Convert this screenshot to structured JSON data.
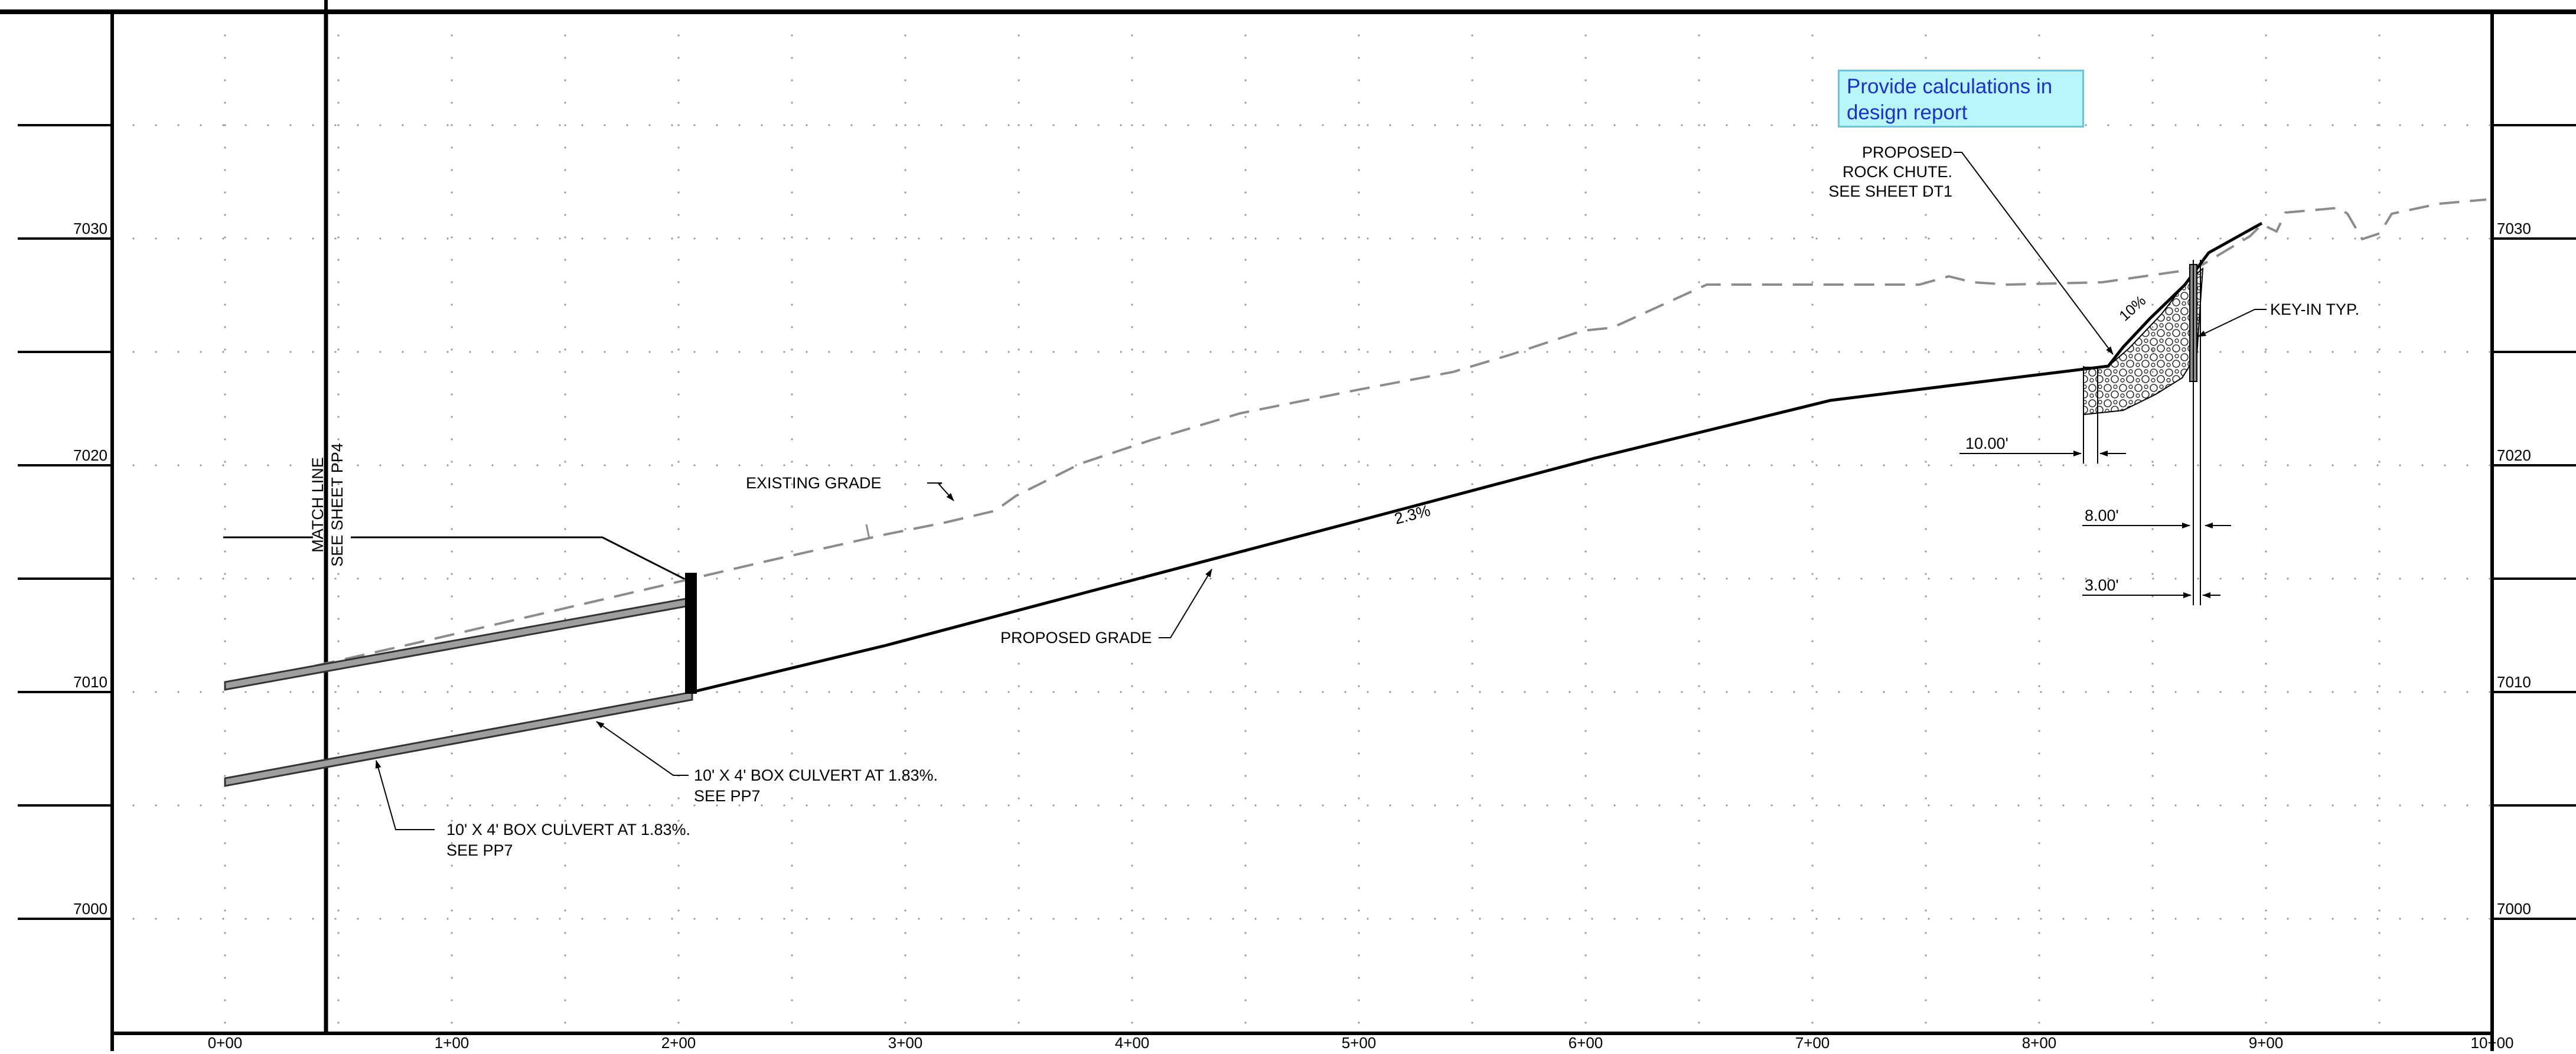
{
  "elevation_labels": [
    "7030",
    "7020",
    "7010",
    "7000"
  ],
  "station_labels": [
    "0+00",
    "1+00",
    "2+00",
    "3+00",
    "4+00",
    "5+00",
    "6+00",
    "7+00",
    "8+00",
    "9+00",
    "10+00"
  ],
  "match_line": {
    "line1": "MATCH LINE",
    "line2": "SEE SHEET PP4"
  },
  "labels": {
    "existing_grade": "EXISTING GRADE",
    "proposed_grade": "PROPOSED GRADE",
    "slope_percent": "2.3%",
    "chute_slope": "10%",
    "box_culvert_upper_line1": "10' X 4' BOX CULVERT AT 1.83%.",
    "box_culvert_upper_line2": "SEE PP7",
    "box_culvert_lower_line1": "10' X 4' BOX CULVERT AT 1.83%.",
    "box_culvert_lower_line2": "SEE PP7",
    "rock_chute_line1": "PROPOSED",
    "rock_chute_line2": "ROCK CHUTE.",
    "rock_chute_line3": "SEE SHEET DT1",
    "key_in": "KEY-IN TYP.",
    "dim_10": "10.00'",
    "dim_8": "8.00'",
    "dim_3": "3.00'"
  },
  "review_note": {
    "line1": "Provide calculations in",
    "line2": "design report"
  },
  "colors": {
    "existing_grade": "#8c8c8c",
    "review_note_fill": "#b8f6fc",
    "review_note_text": "#1b2fd6"
  }
}
